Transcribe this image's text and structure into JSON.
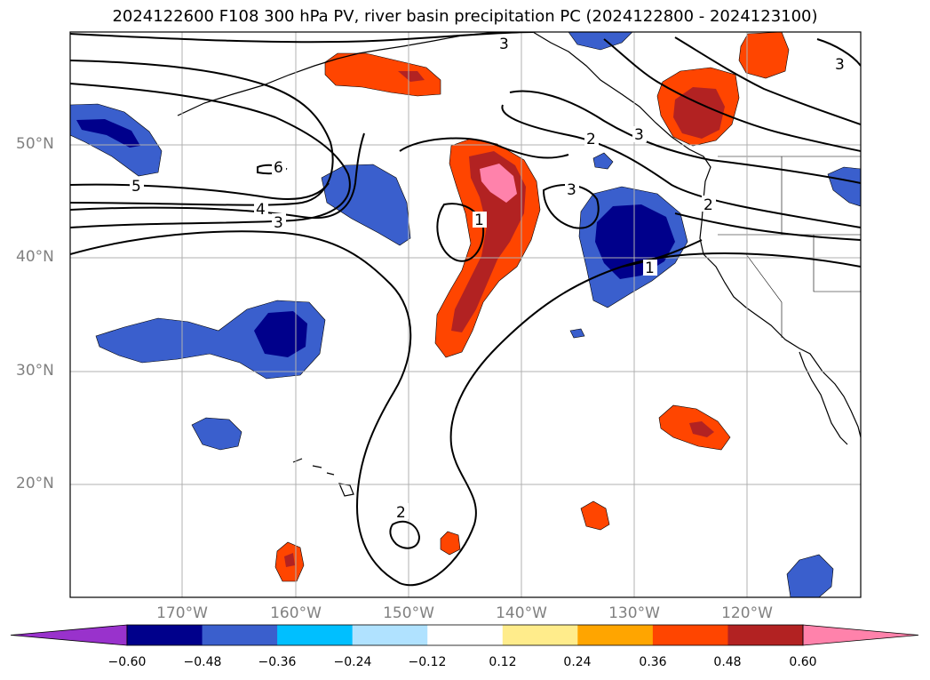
{
  "title": "2024122600 F108 300 hPa PV, river basin precipitation PC (2024122800 - 2024123100)",
  "lat_labels": [
    "50°N",
    "40°N",
    "30°N",
    "20°N"
  ],
  "lon_labels": [
    "170°W",
    "160°W",
    "150°W",
    "140°W",
    "130°W",
    "120°W"
  ],
  "contour_labels": [
    "3",
    "3",
    "2",
    "3",
    "3",
    "6",
    "5",
    "4",
    "3",
    "1",
    "2",
    "1",
    "2"
  ],
  "colorbar": {
    "tick_labels": [
      "−0.60",
      "−0.48",
      "−0.36",
      "−0.24",
      "−0.12",
      "0.12",
      "0.24",
      "0.36",
      "0.48",
      "0.60"
    ],
    "colors": [
      "#9932cc",
      "#00008b",
      "#3a5fcd",
      "#00bfff",
      "#b0e2ff",
      "#ffffff",
      "#ffec8b",
      "#ffa500",
      "#ff4500",
      "#b22222",
      "#ff82ab"
    ]
  },
  "colors": {
    "strong_negative": "#00008b",
    "negative": "#3a5fcd",
    "weak_negative": "#00bfff",
    "positive": "#ff4500",
    "strong_positive": "#b22222",
    "max_positive": "#ff82ab",
    "contour": "#000000",
    "grid": "#b0b0b0"
  }
}
